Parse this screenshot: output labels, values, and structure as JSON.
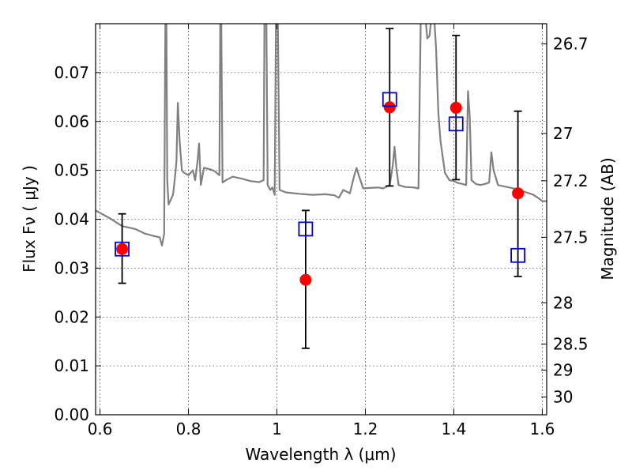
{
  "chart_data": {
    "type": "scatter",
    "xlabel": "Wavelength  λ (μm)",
    "ylabel": "Flux  Fν  ( μJy )",
    "ylabel_right": "Magnitude (AB)",
    "xlim": [
      0.59,
      1.61
    ],
    "ylim": [
      0.0,
      0.08
    ],
    "grid": true,
    "legend": "none",
    "x_ticks": [
      {
        "value": 0.6,
        "label": "0.6"
      },
      {
        "value": 0.8,
        "label": "0.8"
      },
      {
        "value": 1.0,
        "label": "1"
      },
      {
        "value": 1.2,
        "label": "1.2"
      },
      {
        "value": 1.4,
        "label": "1.4"
      },
      {
        "value": 1.6,
        "label": "1.6"
      }
    ],
    "y_ticks": [
      {
        "value": 0.0,
        "label": "0.00"
      },
      {
        "value": 0.01,
        "label": "0.01"
      },
      {
        "value": 0.02,
        "label": "0.02"
      },
      {
        "value": 0.03,
        "label": "0.03"
      },
      {
        "value": 0.04,
        "label": "0.04"
      },
      {
        "value": 0.05,
        "label": "0.05"
      },
      {
        "value": 0.06,
        "label": "0.06"
      },
      {
        "value": 0.07,
        "label": "0.07"
      }
    ],
    "right_ticks": [
      {
        "mag": 26.7,
        "label": "26.7"
      },
      {
        "mag": 27.0,
        "label": "27"
      },
      {
        "mag": 27.2,
        "label": "27.2"
      },
      {
        "mag": 27.5,
        "label": "27.5"
      },
      {
        "mag": 28.0,
        "label": "28"
      },
      {
        "mag": 28.5,
        "label": "28.5"
      },
      {
        "mag": 29.0,
        "label": "29"
      },
      {
        "mag": 30.0,
        "label": "30"
      }
    ],
    "series": [
      {
        "kind": "observed",
        "marker": "filled-circle",
        "color": "#ff0000",
        "points": [
          {
            "x": 0.65,
            "y": 0.0339,
            "err_low": 0.007,
            "err_high": 0.0072
          },
          {
            "x": 1.065,
            "y": 0.0276,
            "err_low": 0.014,
            "err_high": 0.0142
          },
          {
            "x": 1.255,
            "y": 0.0629,
            "err_low": 0.0161,
            "err_high": 0.0161
          },
          {
            "x": 1.405,
            "y": 0.0628,
            "err_low": 0.0147,
            "err_high": 0.0148
          },
          {
            "x": 1.545,
            "y": 0.0453,
            "err_low": 0.017,
            "err_high": 0.0168
          }
        ]
      },
      {
        "kind": "model",
        "marker": "open-square",
        "color": "#0000cc",
        "points": [
          {
            "x": 0.65,
            "y": 0.0339
          },
          {
            "x": 1.065,
            "y": 0.038
          },
          {
            "x": 1.255,
            "y": 0.0645
          },
          {
            "x": 1.405,
            "y": 0.0595
          },
          {
            "x": 1.545,
            "y": 0.0326
          }
        ]
      },
      {
        "kind": "sed",
        "line": "solid",
        "color": "#808080",
        "points": [
          [
            0.59,
            0.0418
          ],
          [
            0.62,
            0.0403
          ],
          [
            0.65,
            0.0386
          ],
          [
            0.68,
            0.038
          ],
          [
            0.7,
            0.0371
          ],
          [
            0.72,
            0.0366
          ],
          [
            0.735,
            0.0363
          ],
          [
            0.74,
            0.0346
          ],
          [
            0.745,
            0.037
          ],
          [
            0.748,
            0.082
          ],
          [
            0.75,
            0.082
          ],
          [
            0.752,
            0.048
          ],
          [
            0.755,
            0.043
          ],
          [
            0.765,
            0.045
          ],
          [
            0.77,
            0.049
          ],
          [
            0.773,
            0.052
          ],
          [
            0.776,
            0.0638
          ],
          [
            0.78,
            0.056
          ],
          [
            0.785,
            0.05
          ],
          [
            0.79,
            0.0495
          ],
          [
            0.8,
            0.049
          ],
          [
            0.81,
            0.05
          ],
          [
            0.815,
            0.048
          ],
          [
            0.82,
            0.0515
          ],
          [
            0.824,
            0.0555
          ],
          [
            0.828,
            0.047
          ],
          [
            0.835,
            0.0505
          ],
          [
            0.85,
            0.0502
          ],
          [
            0.86,
            0.0498
          ],
          [
            0.87,
            0.049
          ],
          [
            0.872,
            0.082
          ],
          [
            0.874,
            0.082
          ],
          [
            0.877,
            0.0475
          ],
          [
            0.885,
            0.048
          ],
          [
            0.9,
            0.0487
          ],
          [
            0.92,
            0.0483
          ],
          [
            0.94,
            0.0478
          ],
          [
            0.96,
            0.0476
          ],
          [
            0.97,
            0.048
          ],
          [
            0.972,
            0.082
          ],
          [
            0.976,
            0.082
          ],
          [
            0.979,
            0.047
          ],
          [
            0.985,
            0.046
          ],
          [
            0.99,
            0.0465
          ],
          [
            0.995,
            0.045
          ],
          [
            0.998,
            0.082
          ],
          [
            1.002,
            0.082
          ],
          [
            1.006,
            0.046
          ],
          [
            1.02,
            0.0455
          ],
          [
            1.05,
            0.0452
          ],
          [
            1.08,
            0.045
          ],
          [
            1.11,
            0.0451
          ],
          [
            1.13,
            0.0449
          ],
          [
            1.14,
            0.0444
          ],
          [
            1.15,
            0.046
          ],
          [
            1.165,
            0.0453
          ],
          [
            1.175,
            0.049
          ],
          [
            1.18,
            0.0505
          ],
          [
            1.185,
            0.049
          ],
          [
            1.195,
            0.0463
          ],
          [
            1.21,
            0.0464
          ],
          [
            1.23,
            0.0465
          ],
          [
            1.24,
            0.0463
          ],
          [
            1.255,
            0.047
          ],
          [
            1.262,
            0.051
          ],
          [
            1.266,
            0.0548
          ],
          [
            1.27,
            0.0505
          ],
          [
            1.275,
            0.047
          ],
          [
            1.29,
            0.0466
          ],
          [
            1.31,
            0.0465
          ],
          [
            1.32,
            0.0463
          ],
          [
            1.325,
            0.08
          ],
          [
            1.335,
            0.082
          ],
          [
            1.34,
            0.077
          ],
          [
            1.345,
            0.0775
          ],
          [
            1.35,
            0.082
          ],
          [
            1.355,
            0.082
          ],
          [
            1.36,
            0.075
          ],
          [
            1.365,
            0.062
          ],
          [
            1.37,
            0.056
          ],
          [
            1.38,
            0.0495
          ],
          [
            1.39,
            0.048
          ],
          [
            1.4,
            0.0478
          ],
          [
            1.41,
            0.0474
          ],
          [
            1.42,
            0.0472
          ],
          [
            1.428,
            0.047
          ],
          [
            1.432,
            0.0662
          ],
          [
            1.436,
            0.061
          ],
          [
            1.44,
            0.048
          ],
          [
            1.45,
            0.0472
          ],
          [
            1.46,
            0.047
          ],
          [
            1.47,
            0.0472
          ],
          [
            1.48,
            0.0475
          ],
          [
            1.485,
            0.0537
          ],
          [
            1.49,
            0.05
          ],
          [
            1.5,
            0.047
          ],
          [
            1.52,
            0.0466
          ],
          [
            1.54,
            0.0462
          ],
          [
            1.56,
            0.0456
          ],
          [
            1.58,
            0.045
          ],
          [
            1.59,
            0.0444
          ],
          [
            1.6,
            0.0437
          ],
          [
            1.61,
            0.0437
          ]
        ]
      }
    ]
  }
}
